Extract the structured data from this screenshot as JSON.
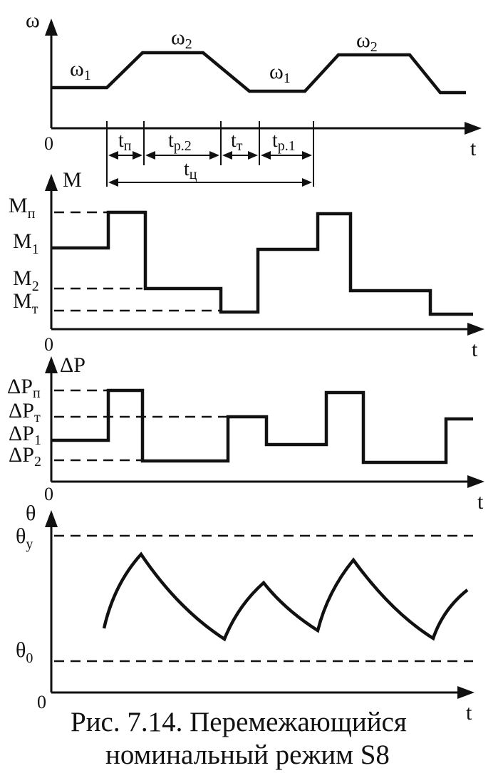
{
  "omega_panel": {
    "axis_y": "ω",
    "axis_x": "t",
    "origin": "0",
    "level_labels": [
      {
        "sym": "ω",
        "sub": "1"
      },
      {
        "sym": "ω",
        "sub": "2"
      },
      {
        "sym": "ω",
        "sub": "1"
      },
      {
        "sym": "ω",
        "sub": "2"
      }
    ],
    "intervals": [
      {
        "sym": "t",
        "sub": "п"
      },
      {
        "sym": "t",
        "sub": "р.2"
      },
      {
        "sym": "t",
        "sub": "т"
      },
      {
        "sym": "t",
        "sub": "р.1"
      }
    ],
    "cycle": {
      "sym": "t",
      "sub": "ц"
    }
  },
  "moment_panel": {
    "axis_y": "M",
    "axis_x": "t",
    "origin": "0",
    "levels": [
      {
        "sym": "M",
        "sub": "п"
      },
      {
        "sym": "M",
        "sub": "1"
      },
      {
        "sym": "M",
        "sub": "2"
      },
      {
        "sym": "M",
        "sub": "т"
      }
    ]
  },
  "loss_panel": {
    "axis_y": "ΔP",
    "axis_x": "t",
    "origin": "0",
    "levels": [
      {
        "sym": "ΔP",
        "sub": "п"
      },
      {
        "sym": "ΔP",
        "sub": "т"
      },
      {
        "sym": "ΔP",
        "sub": "1"
      },
      {
        "sym": "ΔP",
        "sub": "2"
      }
    ]
  },
  "temp_panel": {
    "axis_y": "θ",
    "axis_x": "t",
    "origin": "0",
    "levels": [
      {
        "sym": "θ",
        "sub": "у"
      },
      {
        "sym": "θ",
        "sub": "0"
      }
    ]
  },
  "caption": {
    "line1": "Рис. 7.14. Перемежающийся",
    "line2": "номинальный режим S8"
  }
}
